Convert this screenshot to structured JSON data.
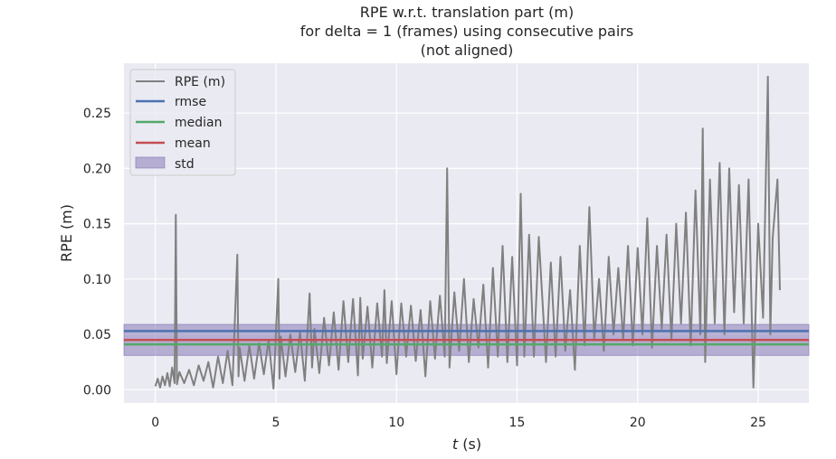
{
  "chart_data": {
    "type": "line",
    "title_lines": [
      "RPE w.r.t. translation part (m)",
      "for delta = 1 (frames) using consecutive pairs",
      "(not aligned)"
    ],
    "xlabel_var": "t",
    "xlabel_unit": " (s)",
    "ylabel": "RPE (m)",
    "xlim": [
      -1.3,
      27.1
    ],
    "ylim": [
      -0.012,
      0.295
    ],
    "xticks": [
      0,
      5,
      10,
      15,
      20,
      25
    ],
    "yticks": [
      0.0,
      0.05,
      0.1,
      0.15,
      0.2,
      0.25
    ],
    "ytick_labels": [
      "0.00",
      "0.05",
      "0.10",
      "0.15",
      "0.20",
      "0.25"
    ],
    "grid": true,
    "legend_position": "top-left",
    "legend": [
      "RPE (m)",
      "rmse",
      "median",
      "mean",
      "std"
    ],
    "stats": {
      "rmse": 0.053,
      "median": 0.041,
      "mean": 0.045,
      "std_band": [
        0.031,
        0.059
      ]
    },
    "series": [
      {
        "name": "RPE (m)",
        "color": "#808080",
        "x": [
          0.0,
          0.1,
          0.2,
          0.3,
          0.4,
          0.5,
          0.6,
          0.7,
          0.8,
          0.85,
          0.9,
          1.0,
          1.2,
          1.4,
          1.6,
          1.8,
          2.0,
          2.2,
          2.4,
          2.6,
          2.8,
          3.0,
          3.2,
          3.4,
          3.45,
          3.5,
          3.7,
          3.9,
          4.1,
          4.3,
          4.5,
          4.7,
          4.9,
          5.1,
          5.15,
          5.2,
          5.4,
          5.6,
          5.8,
          6.0,
          6.2,
          6.4,
          6.5,
          6.6,
          6.8,
          7.0,
          7.2,
          7.4,
          7.6,
          7.8,
          8.0,
          8.2,
          8.4,
          8.5,
          8.6,
          8.8,
          9.0,
          9.2,
          9.4,
          9.5,
          9.6,
          9.8,
          10.0,
          10.2,
          10.4,
          10.6,
          10.8,
          11.0,
          11.2,
          11.4,
          11.6,
          11.8,
          12.0,
          12.1,
          12.2,
          12.4,
          12.6,
          12.8,
          13.0,
          13.2,
          13.4,
          13.6,
          13.8,
          14.0,
          14.2,
          14.4,
          14.6,
          14.8,
          15.0,
          15.15,
          15.3,
          15.5,
          15.7,
          15.9,
          16.2,
          16.4,
          16.6,
          16.8,
          17.0,
          17.2,
          17.4,
          17.6,
          17.8,
          18.0,
          18.2,
          18.4,
          18.6,
          18.8,
          19.0,
          19.2,
          19.4,
          19.6,
          19.8,
          20.0,
          20.2,
          20.4,
          20.6,
          20.8,
          21.0,
          21.2,
          21.4,
          21.6,
          21.8,
          22.0,
          22.2,
          22.4,
          22.6,
          22.7,
          22.8,
          23.0,
          23.2,
          23.4,
          23.6,
          23.8,
          24.0,
          24.2,
          24.4,
          24.6,
          24.8,
          25.0,
          25.2,
          25.4,
          25.5,
          25.6,
          25.8,
          25.9
        ],
        "y": [
          0.003,
          0.01,
          0.002,
          0.012,
          0.004,
          0.015,
          0.003,
          0.02,
          0.006,
          0.158,
          0.005,
          0.016,
          0.006,
          0.018,
          0.004,
          0.022,
          0.008,
          0.025,
          0.002,
          0.03,
          0.006,
          0.035,
          0.004,
          0.122,
          0.012,
          0.038,
          0.008,
          0.04,
          0.01,
          0.042,
          0.014,
          0.045,
          0.001,
          0.1,
          0.01,
          0.048,
          0.012,
          0.05,
          0.016,
          0.052,
          0.008,
          0.087,
          0.02,
          0.055,
          0.015,
          0.065,
          0.022,
          0.07,
          0.018,
          0.08,
          0.025,
          0.082,
          0.013,
          0.083,
          0.028,
          0.075,
          0.02,
          0.078,
          0.03,
          0.09,
          0.024,
          0.08,
          0.014,
          0.078,
          0.03,
          0.076,
          0.026,
          0.072,
          0.012,
          0.08,
          0.028,
          0.085,
          0.03,
          0.2,
          0.02,
          0.088,
          0.035,
          0.1,
          0.025,
          0.082,
          0.038,
          0.095,
          0.02,
          0.11,
          0.03,
          0.13,
          0.025,
          0.12,
          0.022,
          0.177,
          0.03,
          0.14,
          0.03,
          0.138,
          0.025,
          0.115,
          0.03,
          0.12,
          0.035,
          0.09,
          0.018,
          0.13,
          0.04,
          0.165,
          0.045,
          0.1,
          0.035,
          0.12,
          0.05,
          0.11,
          0.045,
          0.13,
          0.04,
          0.128,
          0.05,
          0.155,
          0.038,
          0.13,
          0.055,
          0.14,
          0.045,
          0.15,
          0.06,
          0.16,
          0.04,
          0.18,
          0.05,
          0.236,
          0.025,
          0.19,
          0.06,
          0.205,
          0.05,
          0.2,
          0.07,
          0.185,
          0.06,
          0.19,
          0.002,
          0.15,
          0.065,
          0.283,
          0.05,
          0.137,
          0.19,
          0.09
        ]
      }
    ],
    "colors": {
      "background": "#EAEAF2",
      "grid": "#ffffff",
      "rpe": "#808080",
      "rmse": "#4C72B0",
      "median": "#55A868",
      "mean": "#C44E52",
      "std": "#8172B2"
    }
  }
}
